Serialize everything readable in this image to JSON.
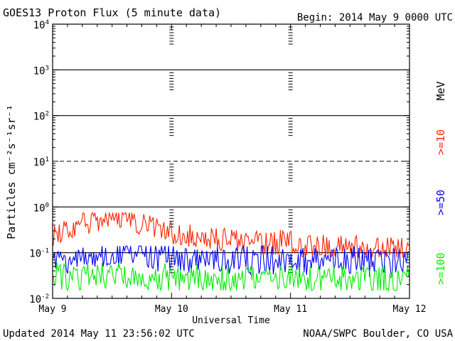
{
  "chart_data": {
    "type": "line",
    "title": "GOES13 Proton Flux (5 minute data)",
    "begin_label": "Begin: 2014 May 9 0000 UTC",
    "xlabel": "Universal Time",
    "ylabel": "Particles cm⁻²s⁻¹sr⁻¹",
    "y_scale": "log",
    "ylim": [
      0.01,
      10000
    ],
    "ytick_base": "10",
    "ytick_exponents": [
      "-2",
      "-1",
      "0",
      "1",
      "2",
      "3",
      "4"
    ],
    "xlim": [
      "2014-05-09T00:00",
      "2014-05-12T00:00"
    ],
    "xtick_labels": [
      "May 9",
      "May 10",
      "May 11",
      "May 12"
    ],
    "threshold_lines": [
      {
        "value": 10,
        "style": "dashed"
      },
      {
        "value": 1,
        "style": "solid"
      },
      {
        "value": 100,
        "style": "solid"
      },
      {
        "value": 1000,
        "style": "solid"
      },
      {
        "value": 0.1,
        "style": "solid"
      }
    ],
    "series": [
      {
        "name": ">=10",
        "color": "#ff2200",
        "typical_range": [
          0.08,
          0.75
        ],
        "values_sample": [
          0.22,
          0.35,
          0.48,
          0.72,
          0.45,
          0.3,
          0.26,
          0.24,
          0.2,
          0.18,
          0.16,
          0.17,
          0.15,
          0.14,
          0.13,
          0.12,
          0.12,
          0.11
        ]
      },
      {
        "name": ">=50",
        "color": "#0000ff",
        "typical_range": [
          0.025,
          0.14
        ],
        "values_sample": [
          0.06,
          0.08,
          0.09,
          0.1,
          0.09,
          0.08,
          0.08,
          0.07,
          0.07,
          0.07,
          0.07,
          0.06,
          0.06,
          0.06,
          0.07,
          0.06,
          0.06,
          0.06
        ]
      },
      {
        "name": ">=100",
        "color": "#00ee00",
        "typical_range": [
          0.015,
          0.06
        ],
        "values_sample": [
          0.03,
          0.03,
          0.035,
          0.03,
          0.03,
          0.028,
          0.028,
          0.027,
          0.027,
          0.026,
          0.026,
          0.026,
          0.026,
          0.025,
          0.025,
          0.025,
          0.025,
          0.025
        ]
      }
    ],
    "legend_unit": "MeV",
    "legend_placement": "right-vertical",
    "grid": true
  },
  "footer": {
    "updated": "Updated 2014 May 11 23:56:02 UTC",
    "source": "NOAA/SWPC Boulder, CO USA"
  }
}
